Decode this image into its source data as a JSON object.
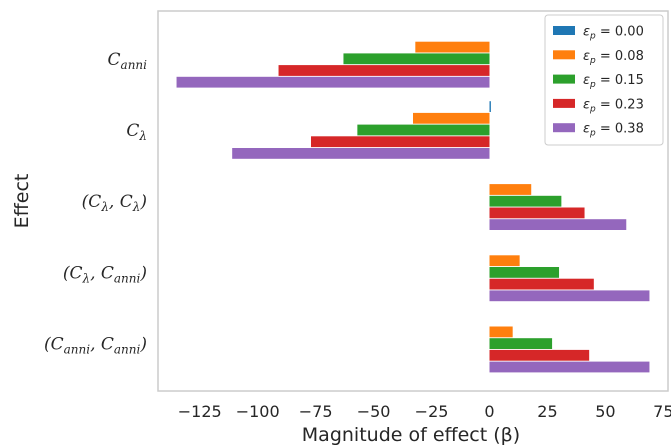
{
  "chart_data": {
    "type": "bar",
    "orientation": "horizontal",
    "xlabel": "Magnitude of effect (β)",
    "ylabel": "Effect",
    "xlim": [
      -143,
      77
    ],
    "xticks": [
      -125,
      -100,
      -75,
      -50,
      -25,
      0,
      25,
      50,
      75
    ],
    "xtick_labels": [
      "−125",
      "−100",
      "−75",
      "−50",
      "−25",
      "0",
      "25",
      "50",
      "75"
    ],
    "categories": [
      "C_anni",
      "C_λ",
      "(C_λ, C_λ)",
      "(C_λ, C_anni)",
      "(C_anni, C_anni)"
    ],
    "category_labels": [
      [
        {
          "t": "C"
        },
        {
          "t": "anni",
          "sub": true
        }
      ],
      [
        {
          "t": "C"
        },
        {
          "t": "λ",
          "sub": true
        }
      ],
      [
        {
          "t": "(C"
        },
        {
          "t": "λ",
          "sub": true
        },
        {
          "t": ", C"
        },
        {
          "t": "λ",
          "sub": true
        },
        {
          "t": ")"
        }
      ],
      [
        {
          "t": "(C"
        },
        {
          "t": "λ",
          "sub": true
        },
        {
          "t": ", C"
        },
        {
          "t": "anni",
          "sub": true
        },
        {
          "t": ")"
        }
      ],
      [
        {
          "t": "(C"
        },
        {
          "t": "anni",
          "sub": true
        },
        {
          "t": ", C"
        },
        {
          "t": "anni",
          "sub": true
        },
        {
          "t": ")"
        }
      ]
    ],
    "series": [
      {
        "name": "ε_p = 0.00",
        "legend_sym": "ε",
        "legend_sub": "p",
        "legend_rest": " = 0.00",
        "color": "#1f77b4",
        "values": [
          0,
          0.6,
          0,
          0,
          0
        ]
      },
      {
        "name": "ε_p = 0.08",
        "legend_sym": "ε",
        "legend_sub": "p",
        "legend_rest": " = 0.08",
        "color": "#ff7f0e",
        "values": [
          -32,
          -33,
          18,
          13,
          10
        ]
      },
      {
        "name": "ε_p = 0.15",
        "legend_sym": "ε",
        "legend_sub": "p",
        "legend_rest": " = 0.15",
        "color": "#2ca02c",
        "values": [
          -63,
          -57,
          31,
          30,
          27
        ]
      },
      {
        "name": "ε_p = 0.23",
        "legend_sym": "ε",
        "legend_sub": "p",
        "legend_rest": " = 0.23",
        "color": "#d62728",
        "values": [
          -91,
          -77,
          41,
          45,
          43
        ]
      },
      {
        "name": "ε_p = 0.38",
        "legend_sym": "ε",
        "legend_sub": "p",
        "legend_rest": " = 0.38",
        "color": "#9467bd",
        "values": [
          -135,
          -111,
          59,
          69,
          69
        ]
      }
    ],
    "grid": false,
    "legend": "top-right"
  }
}
